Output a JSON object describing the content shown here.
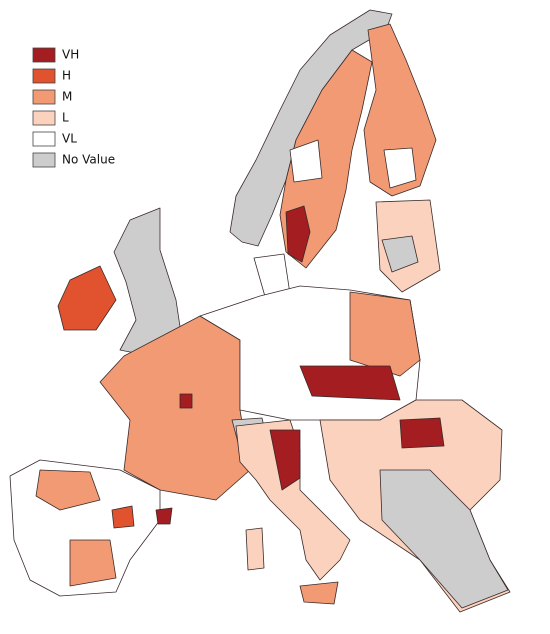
{
  "legend": {
    "items": [
      {
        "label": "VH",
        "color": "#a31d21"
      },
      {
        "label": "H",
        "color": "#e0532e"
      },
      {
        "label": "M",
        "color": "#f19a74"
      },
      {
        "label": "L",
        "color": "#fbd2bd"
      },
      {
        "label": "VL",
        "color": "#ffffff"
      },
      {
        "label": "No Value",
        "color": "#cdcdcd"
      }
    ]
  }
}
